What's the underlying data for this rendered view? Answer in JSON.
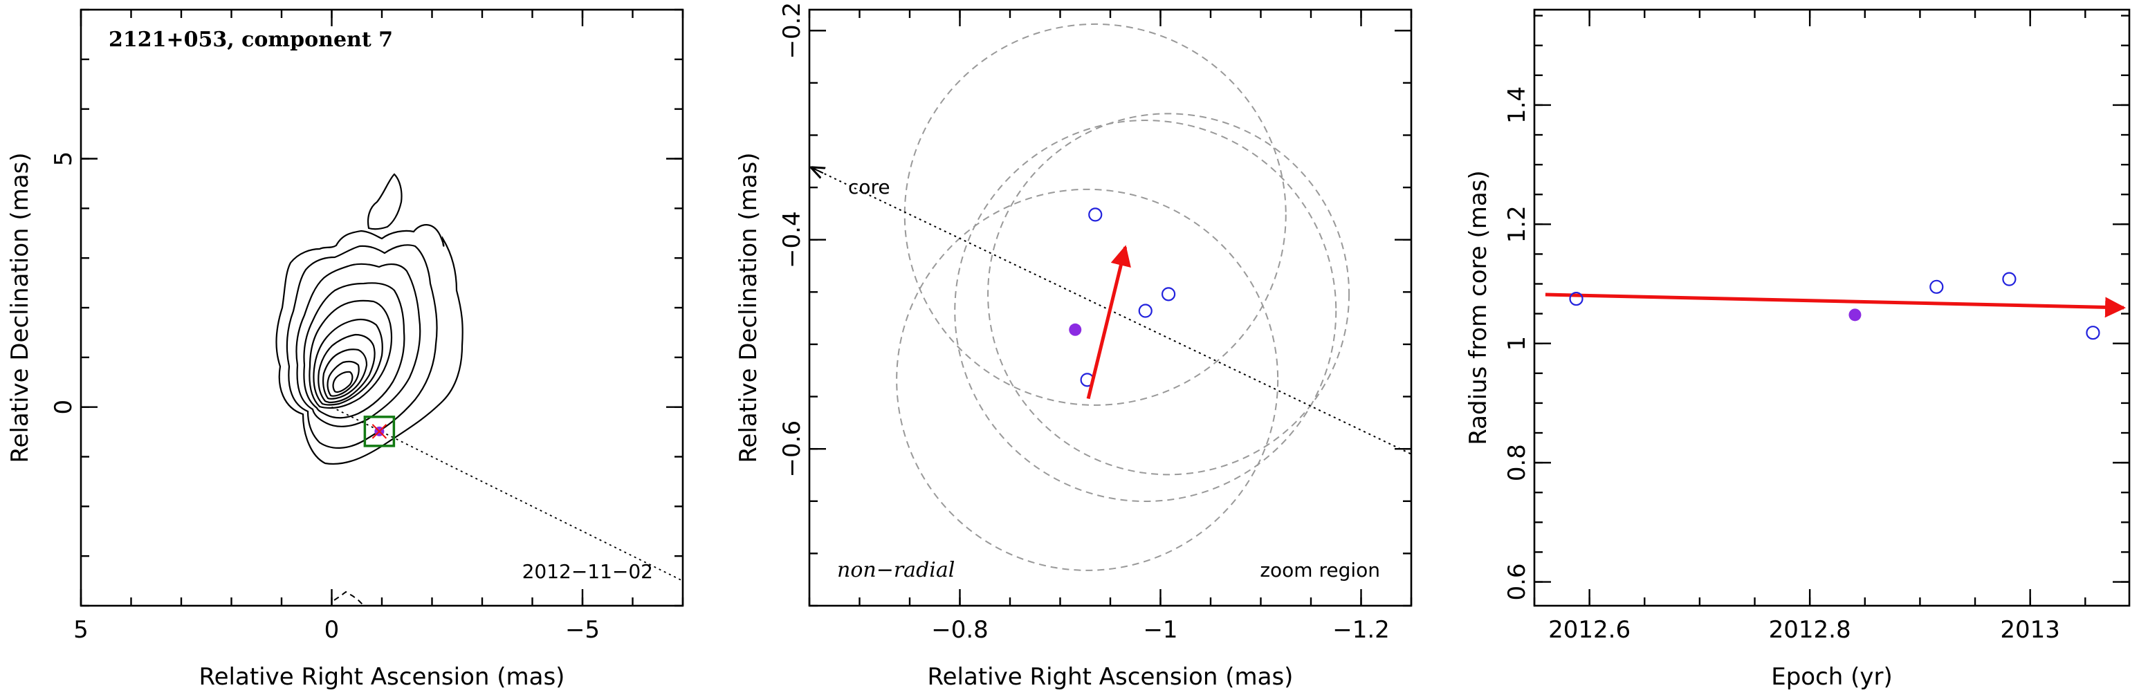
{
  "colors": {
    "axis": "#000000",
    "velocity_arrow": "#ee1111",
    "epoch_open_marker": "#2222dd",
    "reference_epoch_marker": "#8b2be2",
    "error_circles": "#999999",
    "component_box": "#137a13"
  },
  "chart_data": [
    {
      "type": "contour",
      "title": "2121+053, component 7",
      "xlabel": "Relative Right Ascension (mas)",
      "ylabel": "Relative Declination (mas)",
      "xlim": [
        5,
        -7
      ],
      "ylim": [
        -4,
        8
      ],
      "xticks": [
        5,
        0,
        -5
      ],
      "yticks": [
        0,
        5
      ],
      "xtick_labels": [
        "5",
        "0",
        "−5"
      ],
      "ytick_labels": [
        "0",
        "5"
      ],
      "epoch_label": "2012−11−02",
      "core_position": [
        0,
        0
      ],
      "component_position": [
        -0.95,
        -0.49
      ],
      "jet_direction_line": {
        "from": [
          0,
          0
        ],
        "to": [
          -7,
          -3.5
        ]
      },
      "contour_levels_count": 11
    },
    {
      "type": "scatter",
      "xlabel": "Relative Right Ascension (mas)",
      "ylabel": "Relative Declination (mas)",
      "xlim": [
        -0.65,
        -1.25
      ],
      "ylim": [
        -0.75,
        -0.18
      ],
      "xticks": [
        -0.8,
        -1.0,
        -1.2
      ],
      "yticks": [
        -0.6,
        -0.4,
        -0.2
      ],
      "xtick_labels": [
        "−0.8",
        "−1",
        "−1.2"
      ],
      "ytick_labels": [
        "−0.6",
        "−0.4",
        "−0.2"
      ],
      "core_label": "core",
      "annotation_left": "non−radial",
      "annotation_right": "zoom region",
      "points": [
        {
          "x": -0.935,
          "y": -0.376,
          "filled": false
        },
        {
          "x": -0.985,
          "y": -0.468,
          "filled": false
        },
        {
          "x": -1.008,
          "y": -0.452,
          "filled": false
        },
        {
          "x": -0.927,
          "y": -0.534,
          "filled": false
        },
        {
          "x": -0.915,
          "y": -0.486,
          "filled": true
        }
      ],
      "error_circles": [
        {
          "x": -0.935,
          "y": -0.376,
          "r": 0.19
        },
        {
          "x": -0.985,
          "y": -0.468,
          "r": 0.19
        },
        {
          "x": -1.008,
          "y": -0.452,
          "r": 0.18
        },
        {
          "x": -0.927,
          "y": -0.534,
          "r": 0.19
        }
      ],
      "core_direction_line": {
        "from": [
          -0.65,
          -0.33
        ],
        "to": [
          -1.25,
          -0.605
        ]
      },
      "velocity_vector": {
        "from": [
          -0.928,
          -0.552
        ],
        "to": [
          -0.965,
          -0.407
        ]
      }
    },
    {
      "type": "scatter",
      "xlabel": "Epoch (yr)",
      "ylabel": "Radius from core (mas)",
      "xlim": [
        2012.55,
        2013.09
      ],
      "ylim": [
        0.56,
        1.56
      ],
      "xticks": [
        2012.6,
        2012.8,
        2013.0
      ],
      "yticks": [
        0.6,
        0.8,
        1.0,
        1.2,
        1.4
      ],
      "xtick_labels": [
        "2012.6",
        "2012.8",
        "2013"
      ],
      "ytick_labels": [
        "0.6",
        "0.8",
        "1",
        "1.2",
        "1.4"
      ],
      "points": [
        {
          "x": 2012.588,
          "y": 1.075,
          "filled": false
        },
        {
          "x": 2012.841,
          "y": 1.048,
          "filled": true
        },
        {
          "x": 2012.915,
          "y": 1.095,
          "filled": false
        },
        {
          "x": 2012.981,
          "y": 1.108,
          "filled": false
        },
        {
          "x": 2013.057,
          "y": 1.018,
          "filled": false
        }
      ],
      "trend_vector": {
        "from": [
          2012.56,
          1.082
        ],
        "to": [
          2013.085,
          1.06
        ]
      }
    }
  ]
}
